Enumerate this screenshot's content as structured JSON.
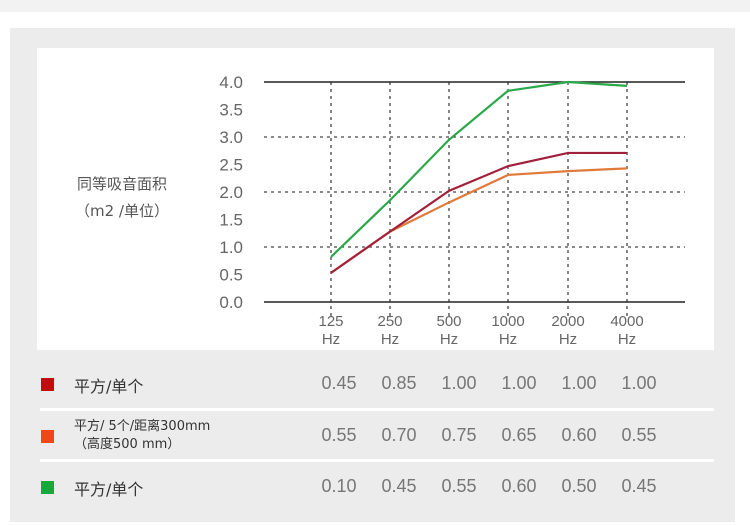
{
  "chart_data": {
    "type": "line",
    "ylabel_line1": "同等吸音面积",
    "ylabel_line2": "（m2 /单位）",
    "categories": [
      "125",
      "250",
      "500",
      "1000",
      "2000",
      "4000"
    ],
    "category_unit": "Hz",
    "yticks": [
      "0.0",
      "0.5",
      "1.0",
      "1.5",
      "2.0",
      "2.5",
      "3.0",
      "3.5",
      "4.0"
    ],
    "ylim": [
      0,
      4
    ],
    "grid": "dotted, at 1.0 and 2.0 and 3.0 and each category",
    "series": [
      {
        "color": "#2aa84a",
        "values": [
          0.82,
          1.85,
          2.95,
          3.84,
          4.0,
          3.93
        ]
      },
      {
        "color": "#a3203a",
        "values": [
          0.53,
          1.28,
          2.02,
          2.47,
          2.71,
          2.71
        ]
      },
      {
        "color": "#e07a3a",
        "values": [
          0.53,
          1.28,
          1.81,
          2.31,
          2.38,
          2.43
        ]
      }
    ]
  },
  "table": {
    "rows": [
      {
        "color": "#c40c0c",
        "label": "平方/单个",
        "values": [
          "0.45",
          "0.85",
          "1.00",
          "1.00",
          "1.00",
          "1.00"
        ]
      },
      {
        "color": "#f0461a",
        "label_line1": "平方/ 5个/距离300mm",
        "label_line2": "（高度500 mm）",
        "values": [
          "0.55",
          "0.70",
          "0.75",
          "0.65",
          "0.60",
          "0.55"
        ]
      },
      {
        "color": "#16a83a",
        "label": "平方/单个",
        "values": [
          "0.10",
          "0.45",
          "0.55",
          "0.60",
          "0.50",
          "0.45"
        ]
      }
    ]
  }
}
